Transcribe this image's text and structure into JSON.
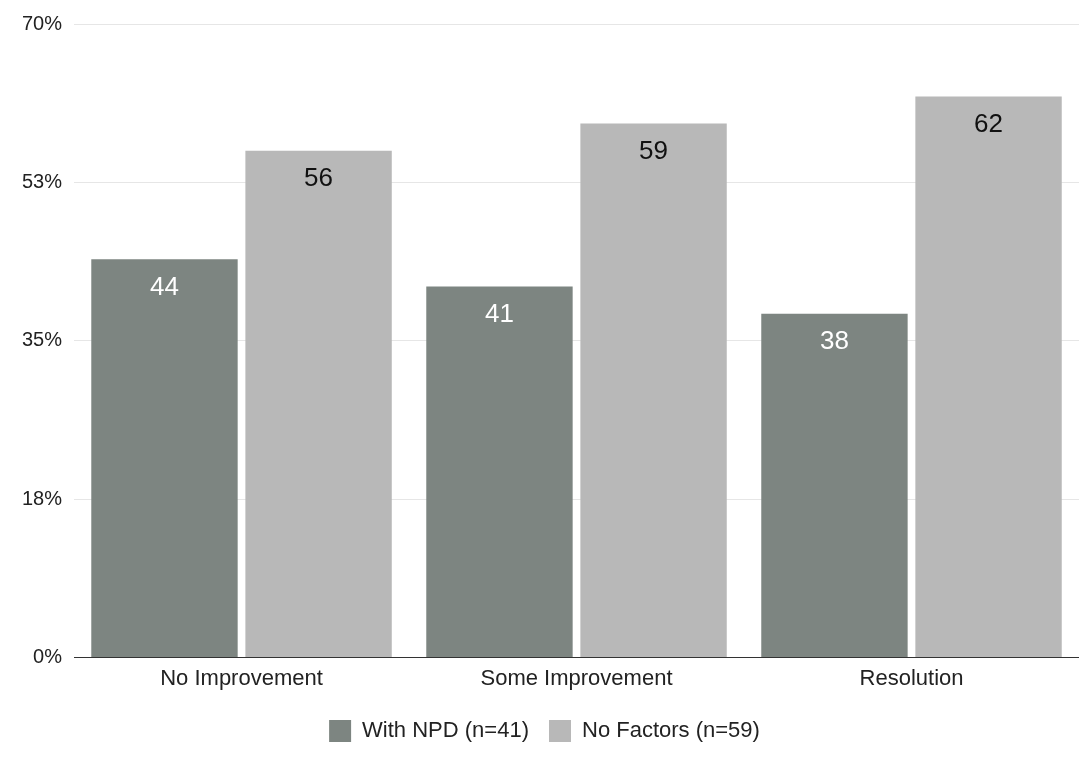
{
  "chart_data": {
    "type": "bar",
    "categories": [
      "No Improvement",
      "Some Improvement",
      "Resolution"
    ],
    "series": [
      {
        "name": "With NPD (n=41)",
        "color": "#7d8581",
        "values": [
          44,
          41,
          38
        ]
      },
      {
        "name": "No Factors (n=59)",
        "color": "#b8b8b8",
        "values": [
          56,
          59,
          62
        ]
      }
    ],
    "ylim": [
      0,
      70
    ],
    "yticks": [
      {
        "value": 0,
        "label": "0%"
      },
      {
        "value": 17.5,
        "label": "18%"
      },
      {
        "value": 35,
        "label": "35%"
      },
      {
        "value": 52.5,
        "label": "53%"
      },
      {
        "value": 70,
        "label": "70%"
      }
    ],
    "grid": "y",
    "legend": "bottom",
    "data_labels": true
  }
}
